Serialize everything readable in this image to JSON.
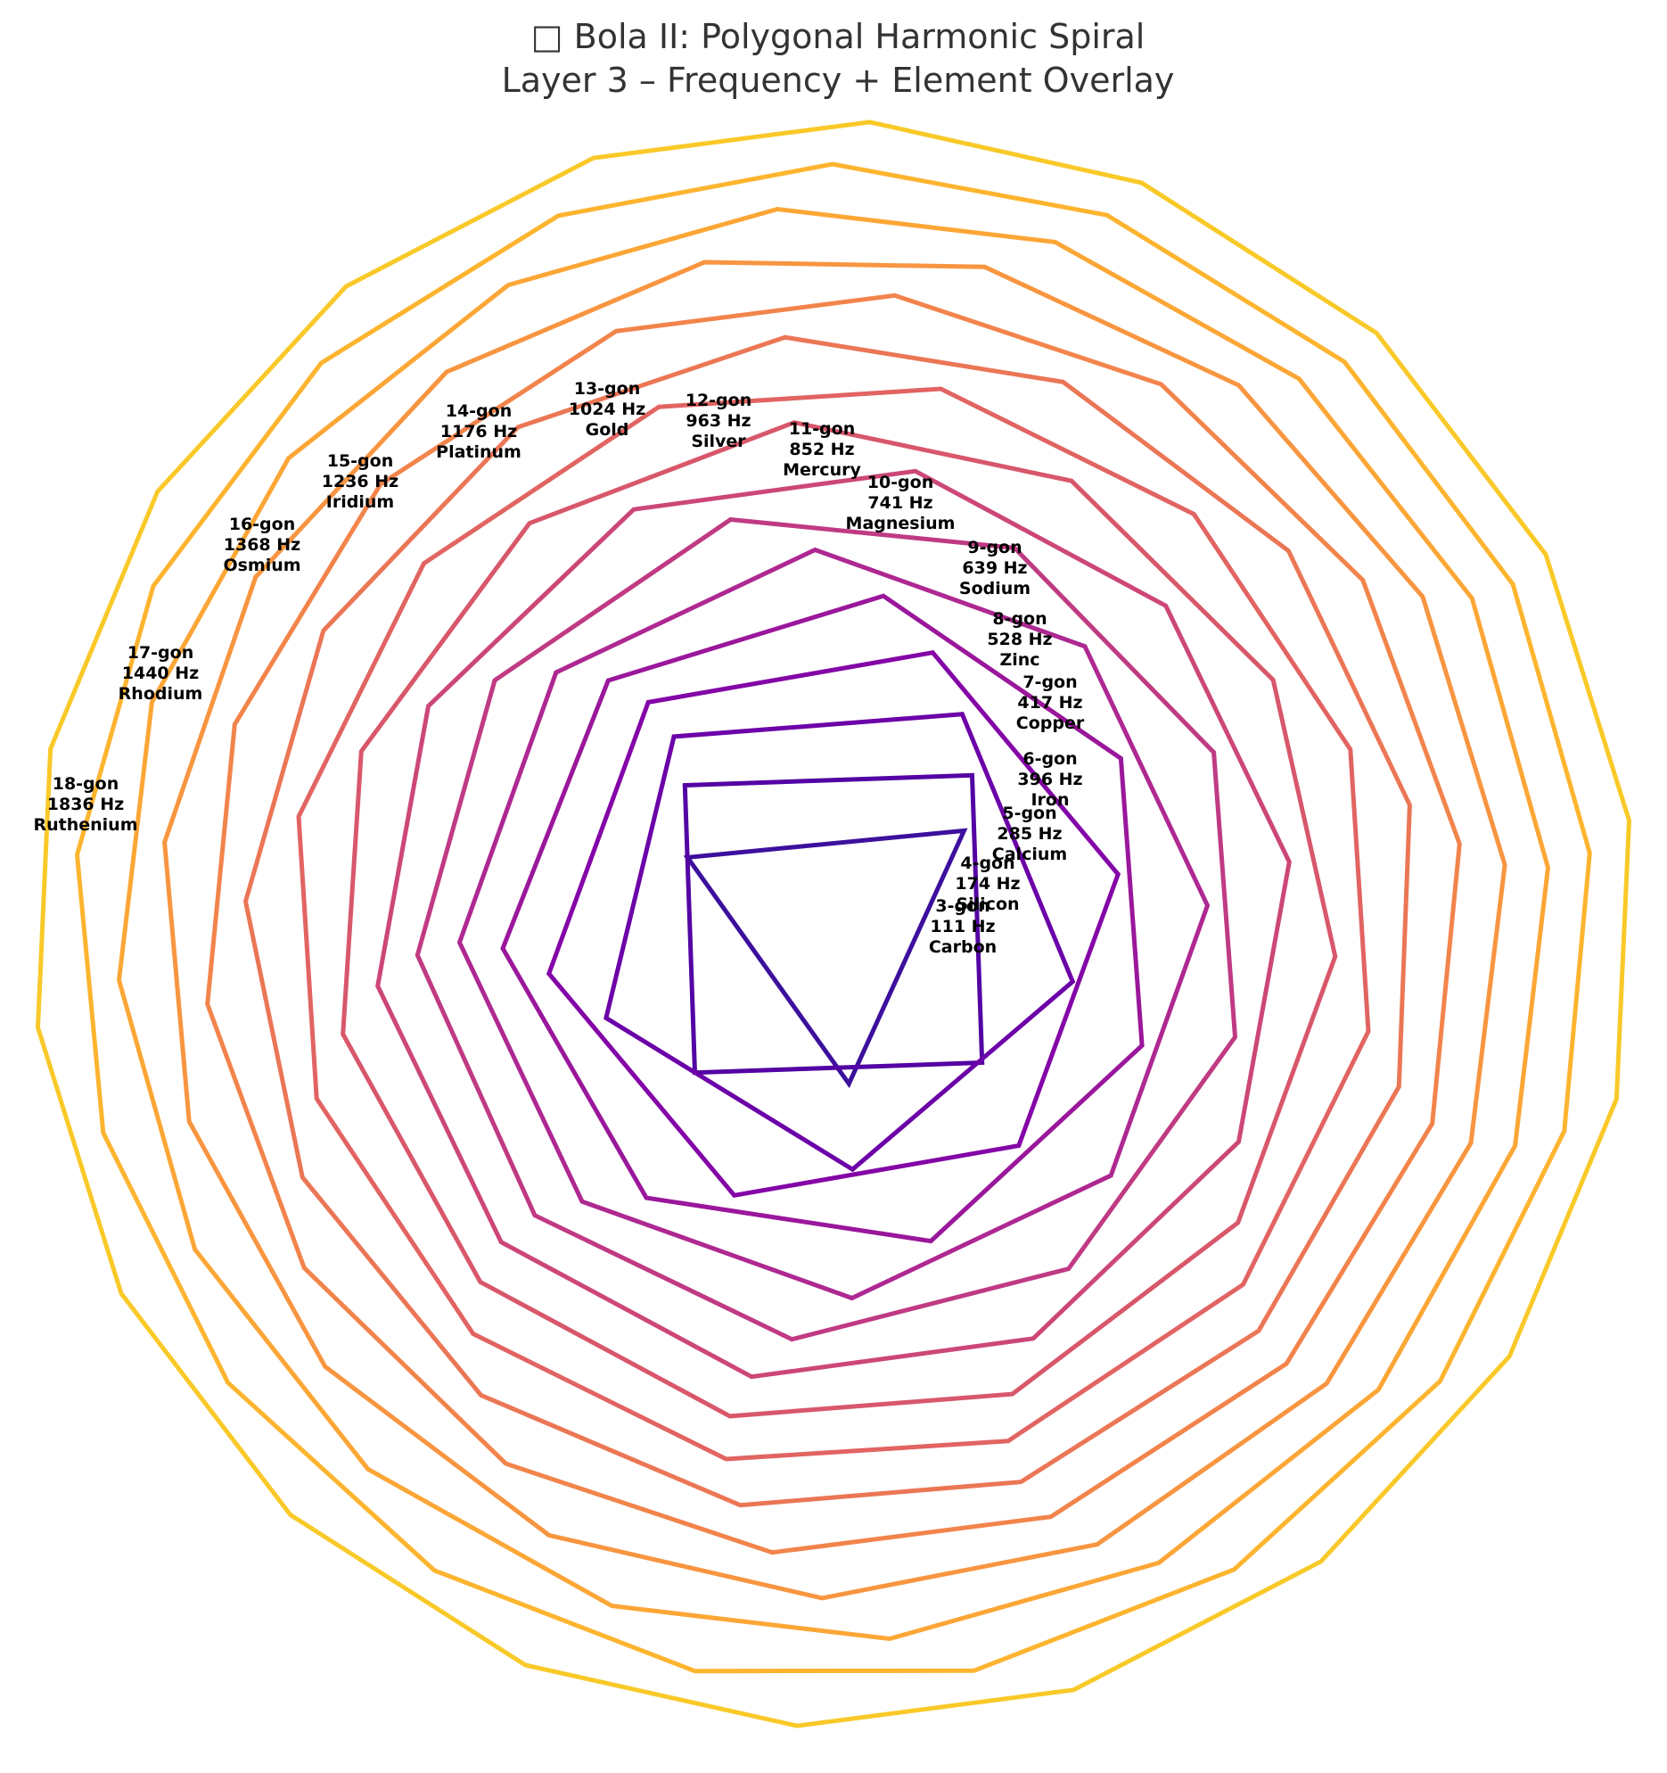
{
  "title_lines": [
    "□ Bola II: Polygonal Harmonic Spiral",
    "Layer 3 – Frequency + Element Overlay"
  ],
  "chart_data": {
    "type": "polygon-spiral",
    "colormap": "plasma",
    "axes_visible": false,
    "layers": [
      {
        "sides": 3,
        "label": "3-gon",
        "frequency": "111 Hz",
        "element": "Carbon",
        "color": "#3c0f9d"
      },
      {
        "sides": 4,
        "label": "4-gon",
        "frequency": "174 Hz",
        "element": "Silicon",
        "color": "#5302a3"
      },
      {
        "sides": 5,
        "label": "5-gon",
        "frequency": "285 Hz",
        "element": "Calcium",
        "color": "#6c00a8"
      },
      {
        "sides": 6,
        "label": "6-gon",
        "frequency": "396 Hz",
        "element": "Iron",
        "color": "#8405a7"
      },
      {
        "sides": 7,
        "label": "7-gon",
        "frequency": "417 Hz",
        "element": "Copper",
        "color": "#9a179b"
      },
      {
        "sides": 8,
        "label": "8-gon",
        "frequency": "528 Hz",
        "element": "Zinc",
        "color": "#ae2892"
      },
      {
        "sides": 9,
        "label": "9-gon",
        "frequency": "639 Hz",
        "element": "Sodium",
        "color": "#c03a83"
      },
      {
        "sides": 10,
        "label": "10-gon",
        "frequency": "741 Hz",
        "element": "Magnesium",
        "color": "#cc4778"
      },
      {
        "sides": 11,
        "label": "11-gon",
        "frequency": "852 Hz",
        "element": "Mercury",
        "color": "#d8576b"
      },
      {
        "sides": 12,
        "label": "12-gon",
        "frequency": "963 Hz",
        "element": "Silver",
        "color": "#e16462"
      },
      {
        "sides": 13,
        "label": "13-gon",
        "frequency": "1024 Hz",
        "element": "Gold",
        "color": "#eb7655"
      },
      {
        "sides": 14,
        "label": "14-gon",
        "frequency": "1176 Hz",
        "element": "Platinum",
        "color": "#f2844b"
      },
      {
        "sides": 15,
        "label": "15-gon",
        "frequency": "1236 Hz",
        "element": "Iridium",
        "color": "#f89540"
      },
      {
        "sides": 16,
        "label": "16-gon",
        "frequency": "1368 Hz",
        "element": "Osmium",
        "color": "#fca636"
      },
      {
        "sides": 17,
        "label": "17-gon",
        "frequency": "1440 Hz",
        "element": "Rhodium",
        "color": "#fdb42f"
      },
      {
        "sides": 18,
        "label": "18-gon",
        "frequency": "1836 Hz",
        "element": "Ruthenium",
        "color": "#f9c929"
      }
    ]
  }
}
